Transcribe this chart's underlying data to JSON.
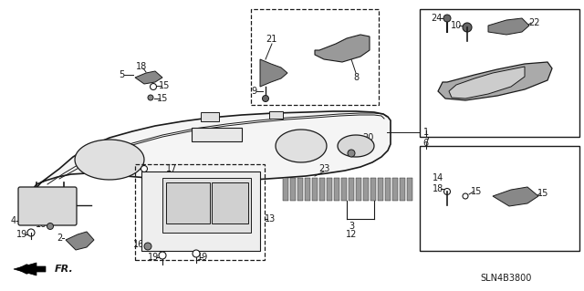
{
  "bg_color": "#ffffff",
  "diagram_code": "SLN4B3800",
  "line_color": "#1a1a1a",
  "part_fill": "#d0d0d0",
  "part_dark": "#555555"
}
